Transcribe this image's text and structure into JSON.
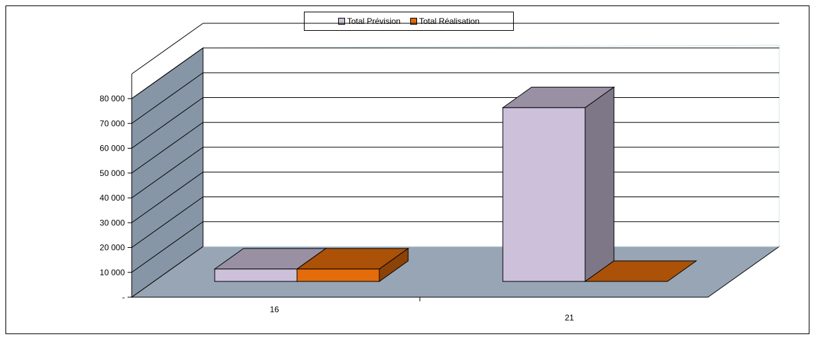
{
  "chart_data": {
    "type": "bar",
    "categories": [
      "16",
      "21"
    ],
    "series": [
      {
        "name": "Total Prévision",
        "values": [
          5000,
          70000
        ],
        "color": "#ccc0da"
      },
      {
        "name": "Total Réalisation",
        "values": [
          5000,
          0
        ],
        "color": "#e46c0a"
      }
    ],
    "ylim": [
      0,
      80000
    ],
    "yticks": [
      "-",
      "10 000",
      "20 000",
      "30 000",
      "40 000",
      "50 000",
      "60 000",
      "70 000",
      "80 000"
    ],
    "grid": true,
    "legend_position": "top-center"
  }
}
